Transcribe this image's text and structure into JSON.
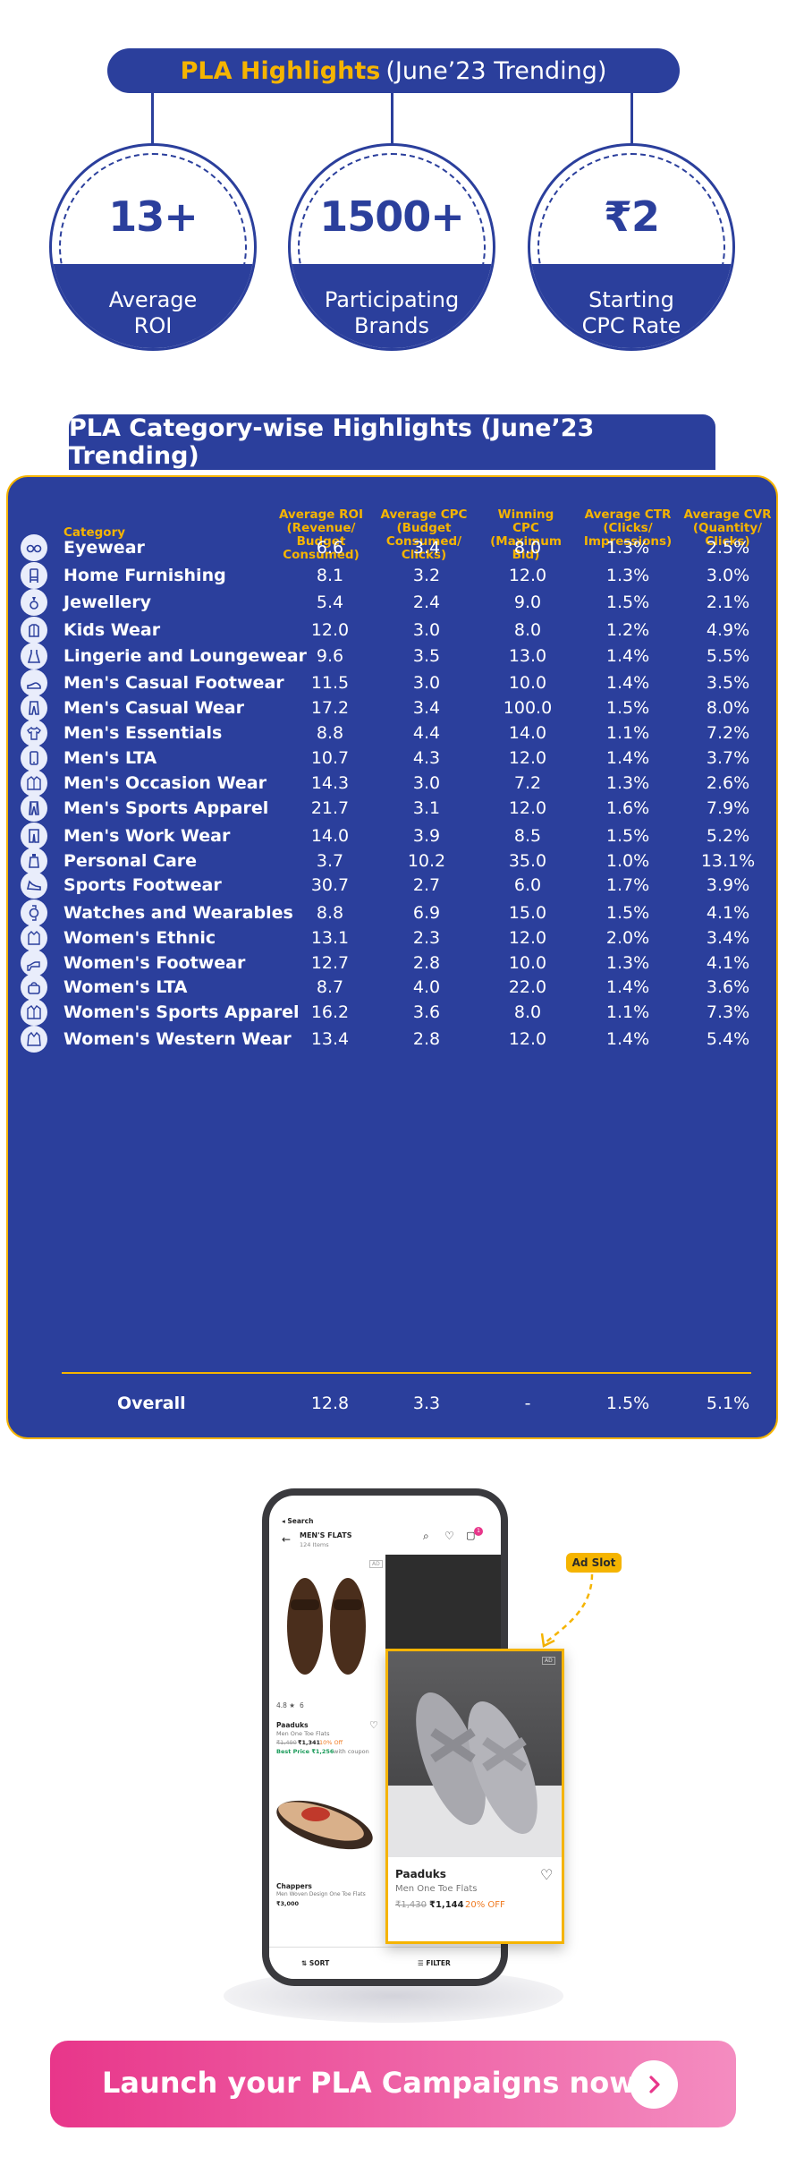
{
  "highlights": {
    "title_main": "PLA Highlights",
    "title_sub": "(June’23 Trending)",
    "cards": [
      {
        "value": "13+",
        "line1": "Average",
        "line2": "ROI"
      },
      {
        "value": "1500+",
        "line1": "Participating",
        "line2": "Brands"
      },
      {
        "value": "₹2",
        "line1": "Starting",
        "line2": "CPC Rate"
      }
    ]
  },
  "table": {
    "title": "PLA Category-wise Highlights (June’23 Trending)",
    "headers": {
      "category": "Category",
      "roi": [
        "Average ROI",
        "(Revenue/ Budget",
        "Consumed)"
      ],
      "cpc": [
        "Average CPC",
        "(Budget",
        "Consumed/",
        "Clicks)"
      ],
      "winning": [
        "Winning",
        "CPC",
        "(Maximum Bid)"
      ],
      "ctr": [
        "Average CTR",
        "(Clicks/",
        "Impressions)"
      ],
      "cvr": [
        "Average CVR",
        "(Quantity/",
        "Clicks)"
      ]
    },
    "rows": [
      {
        "icon": "eyewear-icon",
        "category": "Eyewear",
        "roi": "6.6",
        "cpc": "3.4",
        "winning": "8.0",
        "ctr": "1.3%",
        "cvr": "2.5%"
      },
      {
        "icon": "home-furnishing-icon",
        "category": "Home Furnishing",
        "roi": "8.1",
        "cpc": "3.2",
        "winning": "12.0",
        "ctr": "1.3%",
        "cvr": "3.0%"
      },
      {
        "icon": "jewellery-icon",
        "category": "Jewellery",
        "roi": "5.4",
        "cpc": "2.4",
        "winning": "9.0",
        "ctr": "1.5%",
        "cvr": "2.1%"
      },
      {
        "icon": "kids-wear-icon",
        "category": "Kids Wear",
        "roi": "12.0",
        "cpc": "3.0",
        "winning": "8.0",
        "ctr": "1.2%",
        "cvr": "4.9%"
      },
      {
        "icon": "lingerie-icon",
        "category": "Lingerie and Loungewear",
        "roi": "9.6",
        "cpc": "3.5",
        "winning": "13.0",
        "ctr": "1.4%",
        "cvr": "5.5%"
      },
      {
        "icon": "casual-footwear-icon",
        "category": "Men's Casual Footwear",
        "roi": "11.5",
        "cpc": "3.0",
        "winning": "10.0",
        "ctr": "1.4%",
        "cvr": "3.5%"
      },
      {
        "icon": "trousers-icon",
        "category": "Men's Casual Wear",
        "roi": "17.2",
        "cpc": "3.4",
        "winning": "100.0",
        "ctr": "1.5%",
        "cvr": "8.0%"
      },
      {
        "icon": "tshirt-icon",
        "category": "Men's Essentials",
        "roi": "8.8",
        "cpc": "4.4",
        "winning": "14.0",
        "ctr": "1.1%",
        "cvr": "7.2%"
      },
      {
        "icon": "phone-icon",
        "category": "Men's LTA",
        "roi": "10.7",
        "cpc": "4.3",
        "winning": "12.0",
        "ctr": "1.4%",
        "cvr": "3.7%"
      },
      {
        "icon": "shirt-icon",
        "category": "Men's Occasion Wear",
        "roi": "14.3",
        "cpc": "3.0",
        "winning": "7.2",
        "ctr": "1.3%",
        "cvr": "2.6%"
      },
      {
        "icon": "track-pants-icon",
        "category": "Men's Sports Apparel",
        "roi": "21.7",
        "cpc": "3.1",
        "winning": "12.0",
        "ctr": "1.6%",
        "cvr": "7.9%"
      },
      {
        "icon": "formal-trousers-icon",
        "category": "Men's Work Wear",
        "roi": "14.0",
        "cpc": "3.9",
        "winning": "8.5",
        "ctr": "1.5%",
        "cvr": "5.2%"
      },
      {
        "icon": "bottle-icon",
        "category": "Personal Care",
        "roi": "3.7",
        "cpc": "10.2",
        "winning": "35.0",
        "ctr": "1.0%",
        "cvr": "13.1%"
      },
      {
        "icon": "sneaker-icon",
        "category": "Sports Footwear",
        "roi": "30.7",
        "cpc": "2.7",
        "winning": "6.0",
        "ctr": "1.7%",
        "cvr": "3.9%"
      },
      {
        "icon": "watch-icon",
        "category": "Watches and Wearables",
        "roi": "8.8",
        "cpc": "6.9",
        "winning": "15.0",
        "ctr": "1.5%",
        "cvr": "4.1%"
      },
      {
        "icon": "kurta-icon",
        "category": "Women's Ethnic",
        "roi": "13.1",
        "cpc": "2.3",
        "winning": "12.0",
        "ctr": "2.0%",
        "cvr": "3.4%"
      },
      {
        "icon": "heel-icon",
        "category": "Women's Footwear",
        "roi": "12.7",
        "cpc": "2.8",
        "winning": "10.0",
        "ctr": "1.3%",
        "cvr": "4.1%"
      },
      {
        "icon": "handbag-icon",
        "category": "Women's LTA",
        "roi": "8.7",
        "cpc": "4.0",
        "winning": "22.0",
        "ctr": "1.4%",
        "cvr": "3.6%"
      },
      {
        "icon": "jacket-icon",
        "category": "Women's Sports Apparel",
        "roi": "16.2",
        "cpc": "3.6",
        "winning": "8.0",
        "ctr": "1.1%",
        "cvr": "7.3%"
      },
      {
        "icon": "coat-icon",
        "category": "Women's Western Wear",
        "roi": "13.4",
        "cpc": "2.8",
        "winning": "12.0",
        "ctr": "1.4%",
        "cvr": "5.4%"
      }
    ],
    "overall": {
      "label": "Overall",
      "roi": "12.8",
      "cpc": "3.3",
      "winning": "-",
      "ctr": "1.5%",
      "cvr": "5.1%"
    }
  },
  "phone": {
    "back_label": "◂ Search",
    "listing_title": "MEN'S FLATS",
    "item_count": "124 Items",
    "cart_count": "1",
    "rating": "4.8 ★",
    "rating_count": "6",
    "p1_brand": "Paaduks",
    "p1_name": "Men One Toe Flats",
    "p1_mrp": "₹1,490",
    "p1_price": "₹1,341",
    "p1_off": "10% Off",
    "p1_best": "Best Price ₹1,256",
    "p1_best_suffix": "with coupon",
    "p2_brand": "Chappers",
    "p2_name": "Men Woven Design One Toe Flats",
    "p2_price": "₹3,000",
    "sort_label": "SORT",
    "filter_label": "FILTER",
    "ad_tag": "AD"
  },
  "ad": {
    "slot_label": "Ad Slot",
    "tag": "AD",
    "brand": "Paaduks",
    "name": "Men One Toe Flats",
    "mrp": "₹1,430",
    "price": "₹1,144",
    "off": "20% OFF"
  },
  "cta": {
    "label": "Launch your PLA Campaigns now"
  },
  "colors": {
    "navy": "#2b3f9c",
    "gold": "#f5b400",
    "pink": "#e8368a"
  }
}
